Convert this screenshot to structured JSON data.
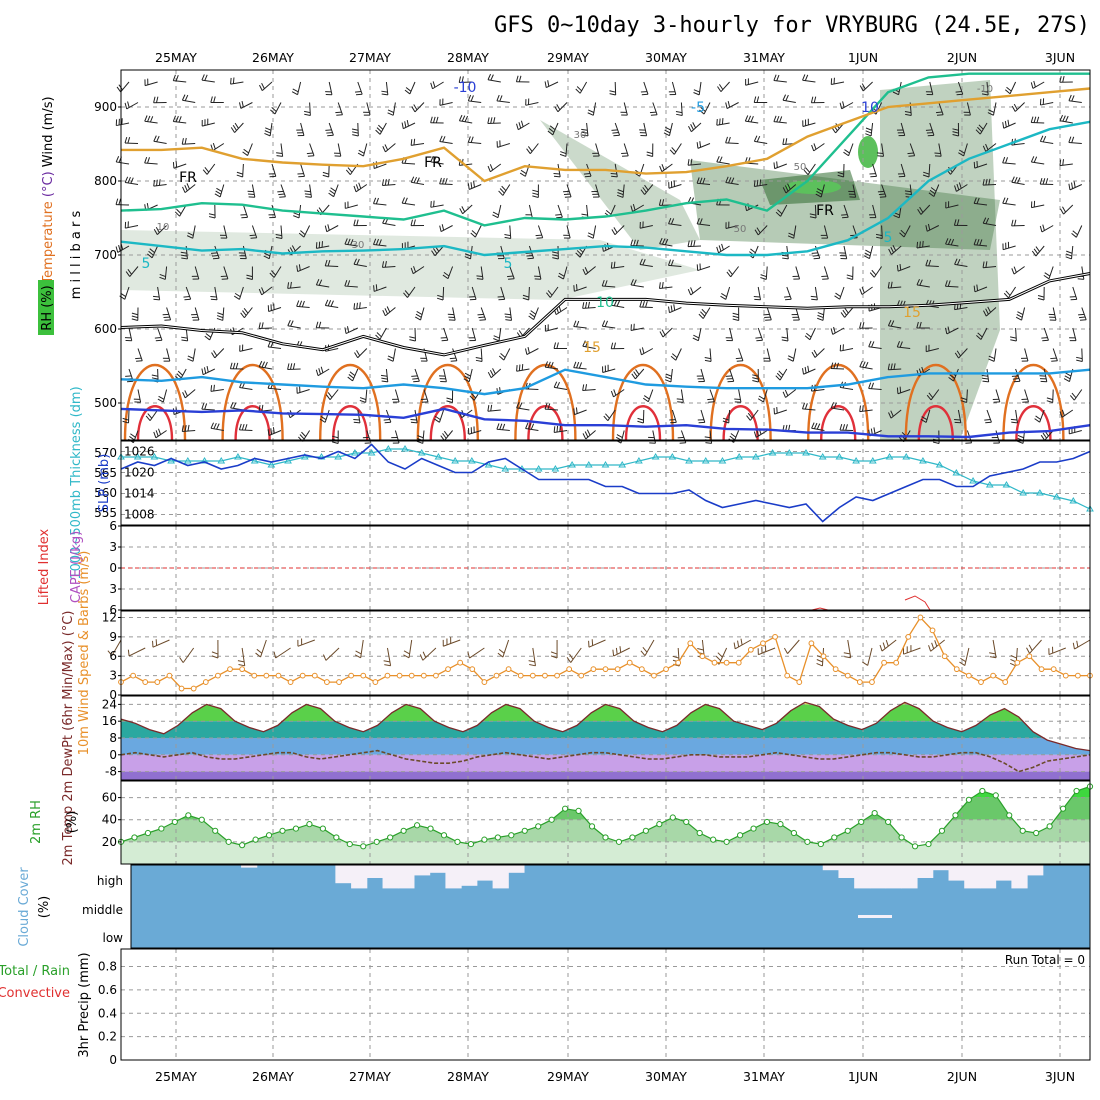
{
  "title": "GFS 0~10day 3-hourly for VRYBURG (24.5E, 27S)",
  "dates": [
    "25MAY",
    "26MAY",
    "27MAY",
    "28MAY",
    "29MAY",
    "30MAY",
    "31MAY",
    "1JUN",
    "2JUN",
    "3JUN"
  ],
  "colors": {
    "isotherm_minus10": "#2a3fd6",
    "isotherm_minus5": "#1f9be0",
    "isotherm_5": "#1cb8c4",
    "isotherm_10": "#1fbf8f",
    "isotherm_15": "#e0a030",
    "isotherm_20": "#e07020",
    "isotherm_25": "#e0303a",
    "freezing": "#000000",
    "slp": "#1a3cc8",
    "thickness": "#30b8c8",
    "wind10m": "#e8902a",
    "rh2m": "#2aa02a",
    "cloud": "#6aaad6",
    "cloud_clear": "#f5f0f8",
    "dewpoint": "#6b4a2a"
  },
  "chart_data": [
    {
      "panel": "upper-air",
      "type": "heatmap",
      "ylabel": "m i l l i b a r s",
      "legend_labels": [
        "Temperature",
        "(°C)",
        "Wind",
        "(m/s)",
        "RH",
        "(%)"
      ],
      "y_ticks": [
        500,
        600,
        700,
        800,
        900
      ],
      "y_range": [
        450,
        950
      ],
      "contour_labels": [
        "-10",
        "-5",
        "10",
        "FR",
        "FR",
        "FR",
        "5",
        "5",
        "5",
        "10",
        "15",
        "15",
        "30",
        "30",
        "50",
        "50",
        "10",
        "-10"
      ],
      "isotherms": [
        {
          "name": "-10",
          "pressure": [
            492,
            490,
            488,
            490,
            486,
            485,
            484,
            480,
            492,
            478,
            476,
            470,
            470,
            468,
            470,
            465,
            464,
            460,
            460,
            455,
            455,
            454,
            460,
            462,
            470
          ]
        },
        {
          "name": "-5",
          "pressure": [
            532,
            530,
            535,
            528,
            525,
            522,
            520,
            525,
            520,
            512,
            520,
            545,
            535,
            525,
            522,
            520,
            520,
            520,
            525,
            535,
            540,
            540,
            540,
            540,
            545
          ]
        },
        {
          "name": "FR",
          "pressure": [
            602,
            604,
            598,
            595,
            580,
            572,
            590,
            575,
            565,
            578,
            590,
            640,
            640,
            640,
            635,
            632,
            630,
            628,
            630,
            630,
            632,
            636,
            640,
            665,
            675
          ]
        },
        {
          "name": "5",
          "pressure": [
            718,
            712,
            706,
            708,
            702,
            705,
            706,
            708,
            712,
            700,
            704,
            708,
            712,
            710,
            705,
            700,
            700,
            705,
            720,
            750,
            800,
            830,
            850,
            870,
            880
          ]
        },
        {
          "name": "10",
          "pressure": [
            760,
            762,
            770,
            768,
            760,
            756,
            752,
            748,
            760,
            740,
            750,
            748,
            752,
            760,
            770,
            775,
            760,
            800,
            860,
            920,
            940,
            945,
            945,
            945,
            945
          ]
        },
        {
          "name": "15",
          "pressure": [
            842,
            842,
            845,
            830,
            825,
            822,
            820,
            830,
            845,
            800,
            820,
            815,
            815,
            810,
            812,
            820,
            830,
            860,
            880,
            900,
            905,
            910,
            915,
            920,
            925
          ]
        }
      ]
    },
    {
      "panel": "slp-thickness",
      "type": "line",
      "ylabel": "SLP (mb)",
      "y2label": "1000~500mb Thickness (dm)",
      "y_ticks": [
        1008,
        1014,
        1020,
        1026
      ],
      "y_range": [
        1005,
        1029
      ],
      "y2_ticks": [
        555,
        560,
        565,
        570
      ],
      "y2_range": [
        552,
        573
      ],
      "series": [
        {
          "name": "SLP (mb)",
          "values": [
            1021,
            1023,
            1022,
            1024,
            1022,
            1023,
            1021,
            1022,
            1024,
            1023,
            1024,
            1025,
            1024,
            1026,
            1024,
            1028,
            1023,
            1021,
            1024,
            1022,
            1020,
            1020,
            1023,
            1024,
            1021,
            1018,
            1018,
            1018,
            1018,
            1016,
            1016,
            1014,
            1014,
            1014,
            1015,
            1012,
            1010,
            1011,
            1012,
            1011,
            1010,
            1011,
            1006,
            1010,
            1013,
            1012,
            1014,
            1016,
            1018,
            1018,
            1016,
            1016,
            1019,
            1020,
            1021,
            1023,
            1023,
            1024,
            1026
          ]
        },
        {
          "name": "1000~500mb Thickness (dm)",
          "values": [
            569,
            569,
            569,
            568,
            568,
            568,
            568,
            569,
            568,
            567,
            568,
            569,
            569,
            569,
            570,
            570,
            571,
            571,
            570,
            569,
            568,
            568,
            567,
            566,
            566,
            566,
            566,
            567,
            567,
            567,
            567,
            568,
            569,
            569,
            568,
            568,
            568,
            569,
            569,
            570,
            570,
            570,
            569,
            569,
            568,
            568,
            569,
            569,
            568,
            567,
            565,
            563,
            562,
            562,
            560,
            560,
            559,
            558,
            556
          ]
        }
      ]
    },
    {
      "panel": "instability",
      "type": "line",
      "ylabel": "Lifted Index",
      "y2label": "CAPE (J/kg)",
      "y_ticks": [
        -6,
        -3,
        0,
        3,
        6
      ],
      "y_tick_labels": [
        "6",
        "3",
        "0",
        "3",
        "6"
      ],
      "y_range": [
        -6,
        6
      ],
      "series": [
        {
          "name": "Lifted Index",
          "values": []
        },
        {
          "name": "CAPE (J/kg)",
          "values": []
        }
      ]
    },
    {
      "panel": "wind10m",
      "type": "line",
      "ylabel": "10m Wind Speed & Barbs (m/s)",
      "y_ticks": [
        0,
        3,
        6,
        9,
        12
      ],
      "y_range": [
        0,
        13
      ],
      "series": [
        {
          "name": "10m Wind Speed",
          "values": [
            2,
            3,
            2,
            2,
            3,
            1,
            1,
            2,
            3,
            4,
            4,
            3,
            3,
            3,
            2,
            3,
            3,
            2,
            2,
            3,
            3,
            2,
            3,
            3,
            3,
            3,
            3,
            4,
            5,
            4,
            2,
            3,
            4,
            3,
            3,
            3,
            3,
            4,
            3,
            4,
            4,
            4,
            5,
            4,
            3,
            4,
            5,
            8,
            6,
            5,
            5,
            5,
            7,
            8,
            9,
            3,
            2,
            8,
            6,
            4,
            3,
            2,
            2,
            5,
            5,
            9,
            12,
            10,
            6,
            4,
            3,
            2,
            3,
            2,
            5,
            6,
            4,
            4,
            3,
            3,
            3
          ]
        }
      ]
    },
    {
      "panel": "temperature2m",
      "type": "area",
      "ylabel": "2m Temp 2m DewPt (6hr Min/Max) (°C)",
      "y_ticks": [
        -8,
        0,
        8,
        16,
        24
      ],
      "y_range": [
        -12,
        28
      ],
      "series": [
        {
          "name": "2m Temp",
          "values": [
            17,
            15,
            12,
            10,
            14,
            20,
            24,
            22,
            16,
            13,
            11,
            14,
            20,
            24,
            22,
            16,
            13,
            11,
            14,
            20,
            24,
            22,
            16,
            13,
            11,
            14,
            20,
            24,
            22,
            16,
            13,
            11,
            14,
            20,
            24,
            22,
            16,
            13,
            11,
            14,
            20,
            24,
            22,
            16,
            14,
            12,
            15,
            21,
            25,
            23,
            17,
            14,
            12,
            15,
            21,
            25,
            22,
            16,
            13,
            11,
            14,
            19,
            22,
            18,
            11,
            7,
            5,
            3,
            2
          ]
        },
        {
          "name": "2m DewPt",
          "values": [
            0,
            1,
            0,
            -1,
            0,
            1,
            -1,
            -2,
            -2,
            -1,
            0,
            1,
            1,
            -1,
            -2,
            -1,
            0,
            1,
            2,
            0,
            -2,
            -3,
            -4,
            -4,
            -3,
            -1,
            0,
            1,
            0,
            -1,
            -2,
            -1,
            0,
            1,
            1,
            0,
            -1,
            -2,
            -2,
            -1,
            0,
            0,
            -1,
            -1,
            -1,
            0,
            1,
            0,
            -1,
            -2,
            -2,
            -1,
            0,
            1,
            1,
            0,
            -1,
            -1,
            0,
            1,
            1,
            -1,
            -4,
            -8,
            -6,
            -3,
            -2,
            -1,
            0
          ]
        }
      ]
    },
    {
      "panel": "rh2m",
      "type": "area",
      "ylabel": "2m RH (%)",
      "y_ticks": [
        20,
        40,
        60
      ],
      "y_range": [
        0,
        75
      ],
      "series": [
        {
          "name": "2m RH",
          "values": [
            20,
            24,
            28,
            32,
            38,
            44,
            40,
            30,
            20,
            17,
            22,
            26,
            30,
            32,
            36,
            32,
            24,
            18,
            16,
            20,
            24,
            30,
            35,
            32,
            26,
            20,
            18,
            22,
            24,
            26,
            30,
            34,
            40,
            50,
            48,
            34,
            24,
            20,
            24,
            30,
            36,
            42,
            38,
            28,
            22,
            20,
            26,
            32,
            38,
            36,
            28,
            20,
            18,
            24,
            30,
            38,
            46,
            38,
            24,
            16,
            18,
            30,
            44,
            58,
            66,
            62,
            44,
            30,
            28,
            34,
            50,
            66,
            70
          ]
        }
      ]
    },
    {
      "panel": "cloud",
      "type": "heatmap",
      "ylabel": "Cloud Cover (%)",
      "levels": [
        "high",
        "middle",
        "low"
      ],
      "high_clear_fraction": [
        0,
        0,
        0,
        0,
        0,
        0,
        0,
        0.1,
        0,
        0,
        0,
        0,
        0,
        0.7,
        0.9,
        0.5,
        0.9,
        0.9,
        0.4,
        0.3,
        0.9,
        0.8,
        0.6,
        0.9,
        0.3,
        0,
        0,
        0,
        0,
        0,
        0,
        0,
        0,
        0,
        0,
        0,
        0,
        0,
        0,
        0,
        0,
        0,
        0,
        0,
        0.2,
        0.5,
        0.9,
        0.9,
        0.9,
        0.9,
        0.5,
        0.2,
        0.6,
        0.9,
        0.9,
        0.6,
        0.9,
        0.4,
        0,
        0,
        0
      ]
    },
    {
      "panel": "precip",
      "type": "bar",
      "ylabel": "3hr Precip (mm)",
      "y2label": "Total / Rain Convective",
      "y_ticks": [
        0,
        0.2,
        0.4,
        0.6,
        0.8
      ],
      "y_range": [
        0,
        0.95
      ],
      "annotation": "Run Total = 0",
      "series": [
        {
          "name": "Total / Rain",
          "values": []
        },
        {
          "name": "Convective",
          "values": []
        }
      ]
    }
  ]
}
